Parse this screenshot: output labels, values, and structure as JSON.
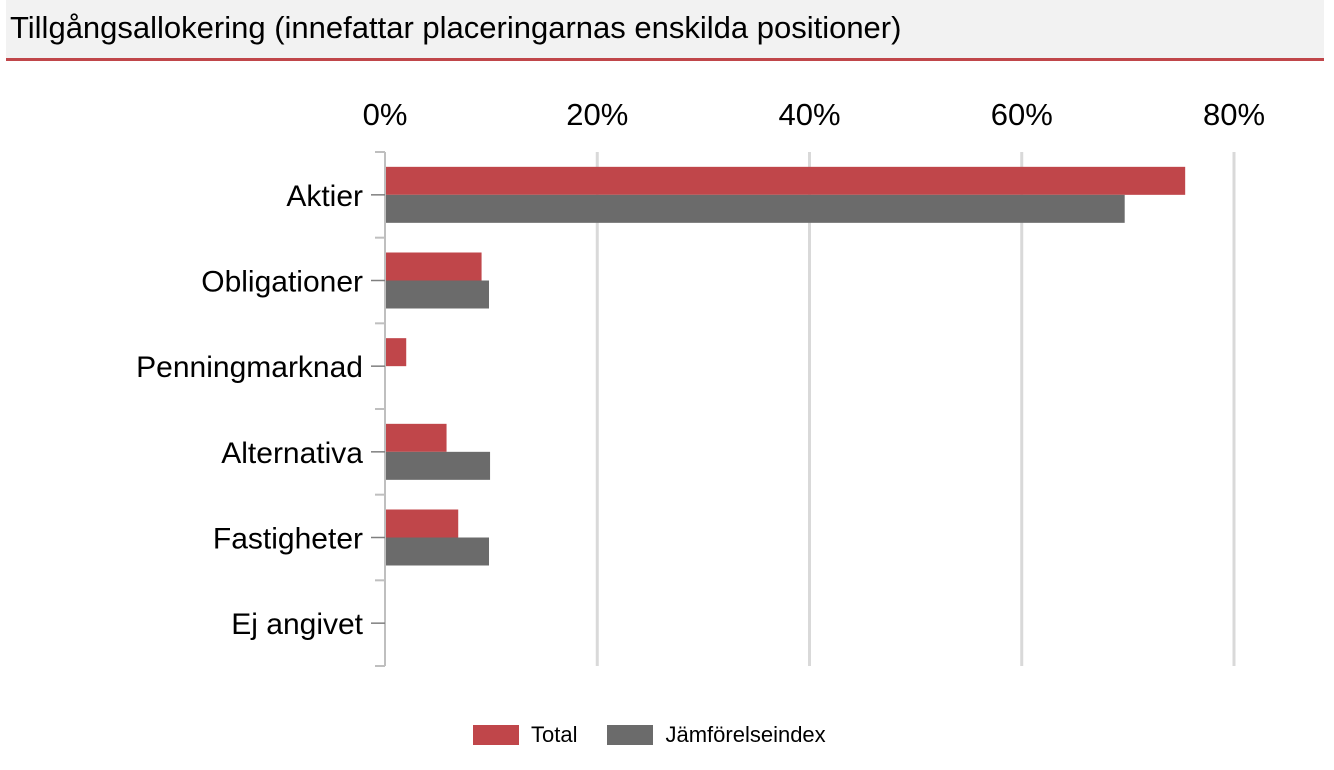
{
  "header": {
    "title": "Tillgångsallokering (innefattar placeringarnas enskilda positioner)"
  },
  "chart_data": {
    "type": "bar",
    "orientation": "horizontal",
    "title": "",
    "xlabel": "",
    "ylabel": "",
    "categories": [
      "Aktier",
      "Obligationer",
      "Penningmarknad",
      "Alternativa",
      "Fastigheter",
      "Ej angivet"
    ],
    "series": [
      {
        "name": "Total",
        "color": "#c0464a",
        "values": [
          75.4,
          9.1,
          2.0,
          5.8,
          6.9,
          0
        ]
      },
      {
        "name": "Jämförelseindex",
        "color": "#6b6b6b",
        "values": [
          69.7,
          9.8,
          0,
          9.9,
          9.8,
          0
        ]
      }
    ],
    "xlim": [
      0,
      80
    ],
    "xticks": [
      "0%",
      "20%",
      "40%",
      "60%",
      "80%"
    ],
    "xtick_values": [
      0,
      20,
      40,
      60,
      80
    ],
    "x_axis_position": "top",
    "grid": true,
    "legend_position": "bottom"
  }
}
